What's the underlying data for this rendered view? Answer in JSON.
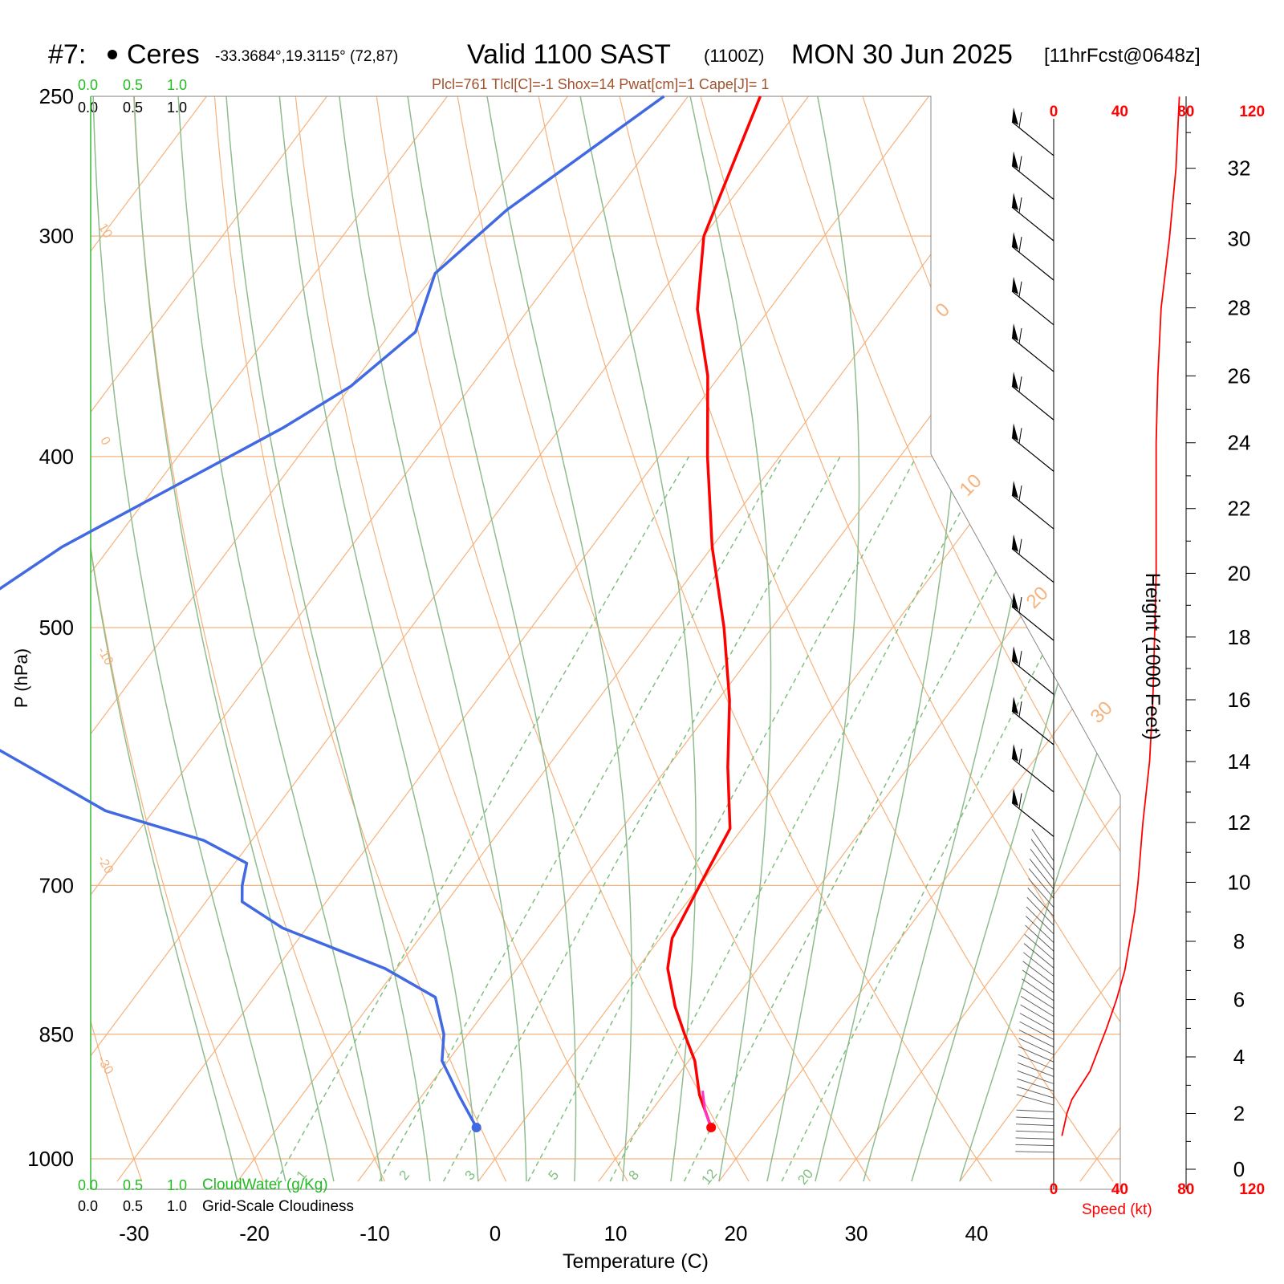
{
  "header": {
    "station_number": "#7:",
    "station_name": "Ceres",
    "coords": "-33.3684°,19.3115° (72,87)",
    "valid": "Valid 1100 SAST",
    "zulu": "(1100Z)",
    "date": "MON 30 Jun 2025",
    "forecast": "[11hrFcst@0648z]",
    "params": "Plcl=761 Tlcl[C]=-1 Shox=14 Pwat[cm]=1 Cape[J]= 1"
  },
  "axes": {
    "xlabel": "Temperature (C)",
    "ylabel": "P (hPa)",
    "height_label": "Height (1000 Feet)",
    "speed_label": "Speed (kt)",
    "cloudwater_label": "CloudWater (g/Kg)",
    "cloudiness_label": "Grid-Scale Cloudiness",
    "scale_ticks": [
      "0.0",
      "0.5",
      "1.0"
    ],
    "speed_ticks": [
      "0",
      "40",
      "80",
      "120"
    ]
  },
  "colors": {
    "temperature": "#ff0000",
    "dewpoint": "#4169e1",
    "isotherm": "#f5b27c",
    "dry_adiabat": "#8fbc8f",
    "mixing_ratio": "#7fbf7f",
    "cloud_scale": "#22bb22",
    "speed": "#ff0000",
    "param_text": "#a0522d"
  },
  "chart_data": {
    "type": "skew-t",
    "pressure_levels": [
      250,
      300,
      400,
      500,
      700,
      850,
      1000
    ],
    "pressure_range": [
      1030,
      250
    ],
    "temperature_ticks": [
      -30,
      -20,
      -10,
      0,
      10,
      20,
      30,
      40
    ],
    "isotherm_labels": [
      "10",
      "0",
      "-10",
      "-20",
      "-30",
      "0",
      "10",
      "20",
      "30"
    ],
    "mixing_ratio_labels": [
      "1",
      "2",
      "3",
      "5",
      "8",
      "12",
      "20"
    ],
    "height_ticks_kft": [
      0,
      2,
      4,
      6,
      8,
      10,
      12,
      14,
      16,
      18,
      20,
      22,
      24,
      26,
      28,
      30,
      32
    ],
    "temperature_profile": [
      {
        "p": 250,
        "t": -44
      },
      {
        "p": 300,
        "t": -40
      },
      {
        "p": 330,
        "t": -36
      },
      {
        "p": 360,
        "t": -31
      },
      {
        "p": 400,
        "t": -26
      },
      {
        "p": 450,
        "t": -20
      },
      {
        "p": 500,
        "t": -14
      },
      {
        "p": 550,
        "t": -9
      },
      {
        "p": 600,
        "t": -5
      },
      {
        "p": 650,
        "t": -1
      },
      {
        "p": 700,
        "t": 0
      },
      {
        "p": 750,
        "t": 1
      },
      {
        "p": 780,
        "t": 2.5
      },
      {
        "p": 820,
        "t": 5.5
      },
      {
        "p": 850,
        "t": 8
      },
      {
        "p": 880,
        "t": 10.5
      },
      {
        "p": 920,
        "t": 13
      },
      {
        "p": 960,
        "t": 16
      }
    ],
    "dewpoint_profile": [
      {
        "p": 250,
        "t": -52
      },
      {
        "p": 290,
        "t": -58
      },
      {
        "p": 315,
        "t": -60
      },
      {
        "p": 340,
        "t": -58
      },
      {
        "p": 365,
        "t": -60
      },
      {
        "p": 385,
        "t": -63
      },
      {
        "p": 450,
        "t": -74
      },
      {
        "p": 490,
        "t": -78
      },
      {
        "p": 530,
        "t": -79
      },
      {
        "p": 560,
        "t": -74
      },
      {
        "p": 600,
        "t": -63
      },
      {
        "p": 635,
        "t": -54
      },
      {
        "p": 660,
        "t": -44
      },
      {
        "p": 680,
        "t": -39
      },
      {
        "p": 700,
        "t": -38
      },
      {
        "p": 715,
        "t": -37
      },
      {
        "p": 740,
        "t": -32
      },
      {
        "p": 780,
        "t": -21
      },
      {
        "p": 810,
        "t": -15
      },
      {
        "p": 850,
        "t": -12
      },
      {
        "p": 880,
        "t": -10.5
      },
      {
        "p": 920,
        "t": -7
      },
      {
        "p": 960,
        "t": -3.5
      }
    ],
    "parcel_profile": [
      {
        "p": 915,
        "t": 13
      },
      {
        "p": 940,
        "t": 14.5
      },
      {
        "p": 960,
        "t": 16
      }
    ],
    "surface": {
      "p": 960,
      "t": 16,
      "td": -3.5
    },
    "wind_speed_profile_kt": [
      {
        "h": 1.2,
        "s": 5
      },
      {
        "h": 2.0,
        "s": 8
      },
      {
        "h": 2.5,
        "s": 11
      },
      {
        "h": 3.5,
        "s": 22
      },
      {
        "h": 5,
        "s": 32
      },
      {
        "h": 6,
        "s": 38
      },
      {
        "h": 7,
        "s": 43
      },
      {
        "h": 8,
        "s": 46
      },
      {
        "h": 9,
        "s": 49
      },
      {
        "h": 10,
        "s": 51
      },
      {
        "h": 12,
        "s": 54
      },
      {
        "h": 14,
        "s": 58
      },
      {
        "h": 16,
        "s": 60
      },
      {
        "h": 18,
        "s": 61
      },
      {
        "h": 20,
        "s": 62
      },
      {
        "h": 22,
        "s": 62
      },
      {
        "h": 24,
        "s": 62
      },
      {
        "h": 26,
        "s": 63
      },
      {
        "h": 28,
        "s": 65
      },
      {
        "h": 30,
        "s": 70
      },
      {
        "h": 32,
        "s": 74
      },
      {
        "h": 34,
        "s": 76
      }
    ],
    "wind_barbs": [
      {
        "p": 255
      },
      {
        "p": 270
      },
      {
        "p": 285
      },
      {
        "p": 300
      },
      {
        "p": 318
      },
      {
        "p": 338
      },
      {
        "p": 360
      },
      {
        "p": 385
      },
      {
        "p": 415
      },
      {
        "p": 445
      },
      {
        "p": 480
      },
      {
        "p": 515
      },
      {
        "p": 550
      },
      {
        "p": 585
      },
      {
        "p": 620
      }
    ]
  }
}
